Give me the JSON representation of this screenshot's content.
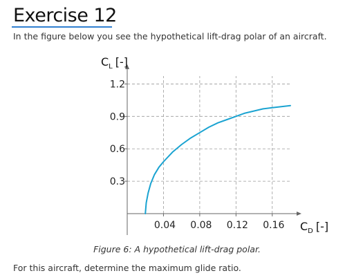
{
  "page": {
    "title": "Exercise 12",
    "intro": "In the figure below you see the hypothetical lift-drag polar of an aircraft.",
    "caption": "Figure 6: A hypothetical lift-drag polar.",
    "question": "For this aircraft, determine the maximum glide ratio.",
    "accent_color": "#2f7fd0"
  },
  "chart_data": {
    "type": "line",
    "title": "",
    "ylabel": "C",
    "ylabel_sub": "L",
    "ylabel_unit": "[-]",
    "xlabel": "C",
    "xlabel_sub": "D",
    "xlabel_unit": "[-]",
    "xlim": [
      0,
      0.18
    ],
    "ylim": [
      0,
      1.35
    ],
    "x_ticks": [
      0.04,
      0.08,
      0.12,
      0.16
    ],
    "x_tick_labels": [
      "0.04",
      "0.08",
      "0.12",
      "0.16"
    ],
    "y_ticks": [
      0.3,
      0.6,
      0.9,
      1.2
    ],
    "y_tick_labels": [
      "0.3",
      "0.6",
      "0.9",
      "1.2"
    ],
    "grid": true,
    "grid_style": "dashed",
    "series": [
      {
        "color": "#1aa3d1",
        "x": [
          0.02,
          0.021,
          0.023,
          0.026,
          0.03,
          0.035,
          0.04,
          0.05,
          0.06,
          0.07,
          0.08,
          0.09,
          0.1,
          0.11,
          0.12,
          0.13,
          0.14,
          0.15,
          0.16,
          0.17,
          0.18
        ],
        "y": [
          0.0,
          0.1,
          0.19,
          0.28,
          0.36,
          0.43,
          0.48,
          0.57,
          0.64,
          0.7,
          0.75,
          0.8,
          0.84,
          0.87,
          0.9,
          0.93,
          0.95,
          0.97,
          0.98,
          0.99,
          1.0
        ]
      }
    ]
  }
}
